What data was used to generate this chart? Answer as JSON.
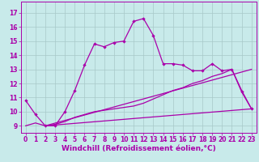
{
  "xlabel": "Windchill (Refroidissement éolien,°C)",
  "bg_color": "#c8eaea",
  "grid_color": "#a8c8c8",
  "line_color": "#aa00aa",
  "xlim": [
    -0.5,
    23.5
  ],
  "ylim": [
    8.5,
    17.8
  ],
  "xticks": [
    0,
    1,
    2,
    3,
    4,
    5,
    6,
    7,
    8,
    9,
    10,
    11,
    12,
    13,
    14,
    15,
    16,
    17,
    18,
    19,
    20,
    21,
    22,
    23
  ],
  "yticks": [
    9,
    10,
    11,
    12,
    13,
    14,
    15,
    16,
    17
  ],
  "series1_x": [
    0,
    1,
    2,
    3,
    4,
    5,
    6,
    7,
    8,
    9,
    10,
    11,
    12,
    13,
    14,
    15,
    16,
    17,
    18,
    19,
    20,
    21,
    22,
    23
  ],
  "series1_y": [
    10.8,
    9.8,
    9.0,
    9.0,
    10.0,
    11.5,
    13.3,
    14.8,
    14.6,
    14.9,
    15.0,
    16.4,
    16.6,
    15.4,
    13.4,
    13.4,
    13.3,
    12.9,
    12.9,
    13.4,
    12.9,
    13.0,
    11.4,
    10.2
  ],
  "series2_x": [
    0,
    1,
    2,
    3,
    4,
    5,
    6,
    7,
    8,
    9,
    10,
    11,
    12,
    13,
    14,
    15,
    16,
    17,
    18,
    19,
    20,
    21,
    22,
    23
  ],
  "series2_y": [
    9.0,
    9.2,
    9.0,
    9.1,
    9.3,
    9.6,
    9.8,
    10.0,
    10.1,
    10.2,
    10.3,
    10.4,
    10.6,
    10.9,
    11.2,
    11.5,
    11.7,
    12.0,
    12.2,
    12.5,
    12.7,
    13.0,
    11.5,
    10.2
  ],
  "line3_x0": 2,
  "line3_x1": 23,
  "line3_y0": 9.0,
  "line3_y1": 10.2,
  "line4_x0": 2,
  "line4_x1": 23,
  "line4_y0": 9.0,
  "line4_y1": 13.0,
  "xlabel_fontsize": 6.5,
  "tick_fontsize": 5.5
}
